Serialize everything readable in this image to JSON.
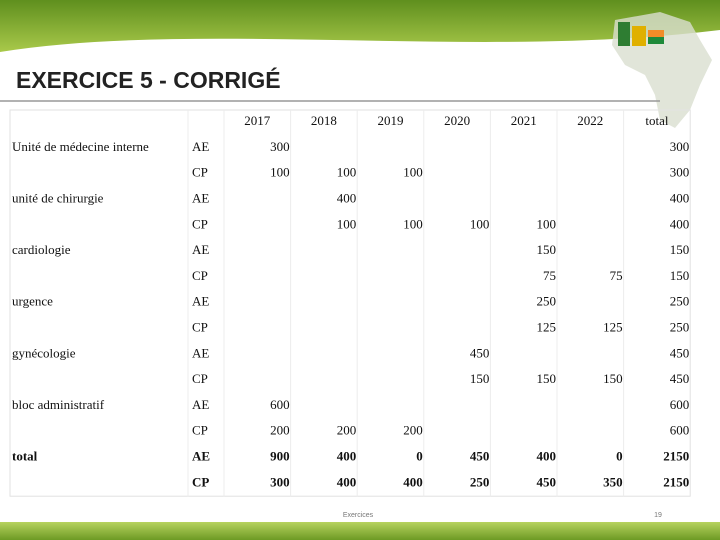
{
  "header": {
    "title": "EXERCICE 5 - CORRIGÉ"
  },
  "table": {
    "columns": [
      2017,
      2018,
      2019,
      2020,
      2021,
      2022,
      "total"
    ],
    "rows": [
      {
        "label": "Unité de médecine interne",
        "type": "AE",
        "cells": [
          300,
          null,
          null,
          null,
          null,
          null,
          300
        ]
      },
      {
        "label": null,
        "type": "CP",
        "cells": [
          100,
          100,
          100,
          null,
          null,
          null,
          300
        ]
      },
      {
        "label": "unité de chirurgie",
        "type": "AE",
        "cells": [
          null,
          400,
          null,
          null,
          null,
          null,
          400
        ]
      },
      {
        "label": null,
        "type": "CP",
        "cells": [
          null,
          100,
          100,
          100,
          100,
          null,
          400
        ]
      },
      {
        "label": "cardiologie",
        "type": "AE",
        "cells": [
          null,
          null,
          null,
          null,
          150,
          null,
          150
        ]
      },
      {
        "label": null,
        "type": "CP",
        "cells": [
          null,
          null,
          null,
          null,
          75,
          75,
          150
        ]
      },
      {
        "label": "urgence",
        "type": "AE",
        "cells": [
          null,
          null,
          null,
          null,
          250,
          null,
          250
        ]
      },
      {
        "label": null,
        "type": "CP",
        "cells": [
          null,
          null,
          null,
          null,
          125,
          125,
          250
        ]
      },
      {
        "label": "gynécologie",
        "type": "AE",
        "cells": [
          null,
          null,
          null,
          450,
          null,
          null,
          450
        ]
      },
      {
        "label": null,
        "type": "CP",
        "cells": [
          null,
          null,
          null,
          150,
          150,
          150,
          450
        ]
      },
      {
        "label": "bloc administratif",
        "type": "AE",
        "cells": [
          600,
          null,
          null,
          null,
          null,
          null,
          600
        ]
      },
      {
        "label": null,
        "type": "CP",
        "cells": [
          200,
          200,
          200,
          null,
          null,
          null,
          600
        ]
      },
      {
        "label": "total",
        "type": "AE",
        "cells": [
          900,
          400,
          0,
          450,
          400,
          0,
          2150
        ]
      },
      {
        "label": null,
        "type": "CP",
        "cells": [
          300,
          400,
          400,
          250,
          450,
          350,
          2150
        ]
      }
    ]
  },
  "footer": {
    "text": "Exercices",
    "page": 19
  }
}
